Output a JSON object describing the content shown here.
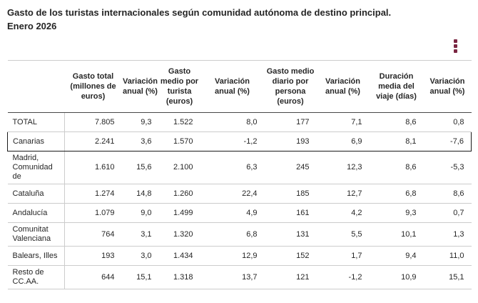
{
  "page": {
    "title_line1": "Gasto de los turistas internacionales según comunidad autónoma de destino principal.",
    "title_line2": "Enero 2026"
  },
  "menu": {
    "icon": "kebab-menu",
    "glyph": "⋮",
    "color": "#7a2642"
  },
  "colors": {
    "accent": "#7a2642",
    "border_light": "#cccccc",
    "border_dark": "#474747",
    "highlight_border": "#1a1a1a",
    "text": "#262626"
  },
  "chart_data": {
    "type": "table",
    "title": "Gasto de los turistas internacionales según comunidad autónoma de destino principal. Enero 2026",
    "columns": [
      "",
      "Gasto total\n(millones de\neuros)",
      "Variación\nanual (%)",
      "Gasto\nmedio por\nturista\n(euros)",
      "Variación\nanual (%)",
      "Gasto medio\ndiario por\npersona\n(euros)",
      "Variación\nanual (%)",
      "Duración\nmedia del\nviaje (días)",
      "Variación\nanual (%)"
    ],
    "rows": [
      {
        "name": "TOTAL",
        "highlighted": false,
        "values": [
          "7.805",
          "9,3",
          "1.522",
          "8,0",
          "177",
          "7,1",
          "8,6",
          "0,8"
        ]
      },
      {
        "name": "Canarias",
        "highlighted": true,
        "values": [
          "2.241",
          "3,6",
          "1.570",
          "-1,2",
          "193",
          "6,9",
          "8,1",
          "-7,6"
        ]
      },
      {
        "name": "Madrid, Comunidad de",
        "highlighted": false,
        "values": [
          "1.610",
          "15,6",
          "2.100",
          "6,3",
          "245",
          "12,3",
          "8,6",
          "-5,3"
        ]
      },
      {
        "name": "Cataluña",
        "highlighted": false,
        "values": [
          "1.274",
          "14,8",
          "1.260",
          "22,4",
          "185",
          "12,7",
          "6,8",
          "8,6"
        ]
      },
      {
        "name": "Andalucía",
        "highlighted": false,
        "values": [
          "1.079",
          "9,0",
          "1.499",
          "4,9",
          "161",
          "4,2",
          "9,3",
          "0,7"
        ]
      },
      {
        "name": "Comunitat Valenciana",
        "highlighted": false,
        "values": [
          "764",
          "3,1",
          "1.320",
          "6,8",
          "131",
          "5,5",
          "10,1",
          "1,3"
        ]
      },
      {
        "name": "Balears, Illes",
        "highlighted": false,
        "values": [
          "193",
          "3,0",
          "1.434",
          "12,9",
          "152",
          "1,7",
          "9,4",
          "11,0"
        ]
      },
      {
        "name": "Resto de CC.AA.",
        "highlighted": false,
        "values": [
          "644",
          "15,1",
          "1.318",
          "13,7",
          "121",
          "-1,2",
          "10,9",
          "15,1"
        ]
      }
    ]
  }
}
